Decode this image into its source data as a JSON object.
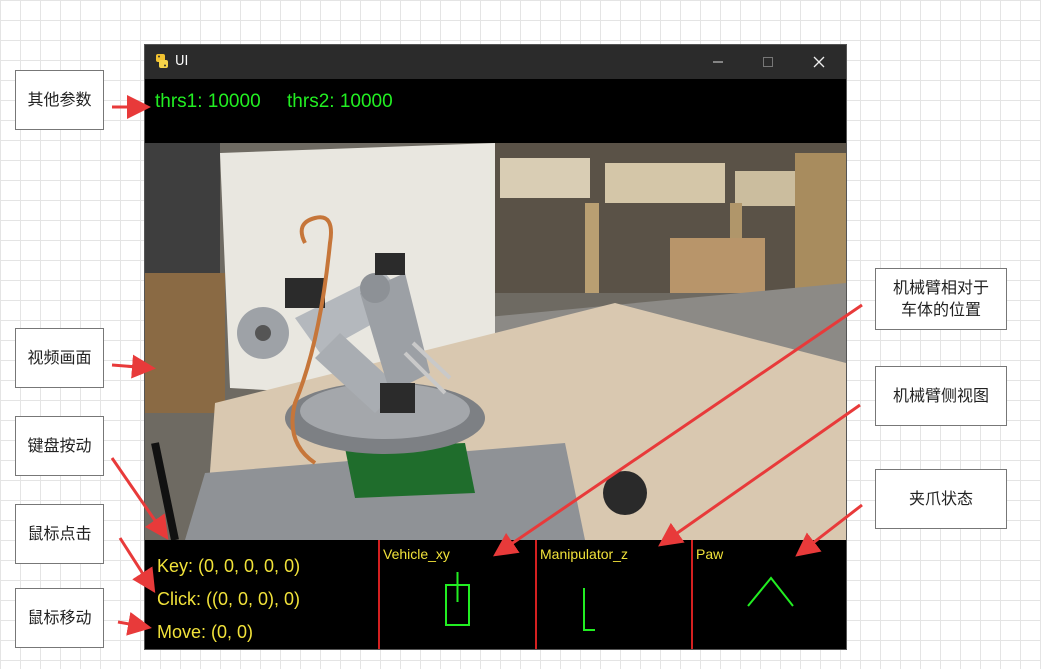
{
  "window": {
    "title": "UI"
  },
  "params_line": "thrs1: 10000     thrs2: 10000",
  "status": {
    "key": "Key: (0, 0, 0, 0, 0)",
    "click": "Click: ((0, 0, 0), 0)",
    "move": "Move: (0, 0)"
  },
  "panels": {
    "vehicle": "Vehicle_xy",
    "manipulator": "Manipulator_z",
    "paw": "Paw"
  },
  "annotations": {
    "other_params": "其他参数",
    "video_view": "视频画面",
    "keyboard": "键盘按动",
    "mouse_click": "鼠标点击",
    "mouse_move": "鼠标移动",
    "arm_vs_body_1": "机械臂相对于",
    "arm_vs_body_2": "车体的位置",
    "arm_side_view": "机械臂侧视图",
    "gripper_state": "夹爪状态"
  },
  "colors": {
    "hud_green": "#22ee22",
    "hud_yellow": "#f1e23a",
    "divider_red": "#d42020",
    "arrow_red": "#e83a3a"
  },
  "icons": [
    "python-icon",
    "minimize-icon",
    "maximize-icon",
    "close-icon"
  ]
}
